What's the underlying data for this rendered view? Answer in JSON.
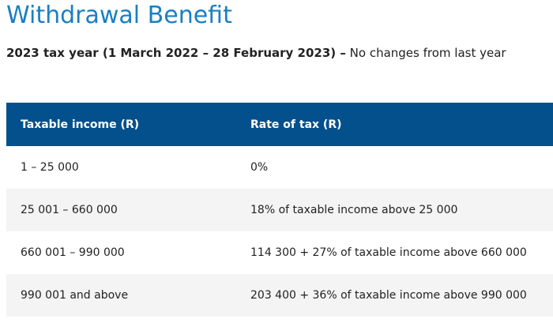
{
  "header": {
    "title": "Withdrawal Benefit",
    "subtitle_bold": "2023 tax year (1 March 2022 – 28 February 2023) –",
    "subtitle_rest": "No changes from last year"
  },
  "table": {
    "columns": [
      "Taxable income (R)",
      "Rate of tax (R)"
    ],
    "rows": [
      [
        "1 – 25 000",
        "0%"
      ],
      [
        "25 001 – 660 000",
        "18% of taxable income above 25 000"
      ],
      [
        "660 001 – 990 000",
        "114 300 + 27% of taxable income above 660 000"
      ],
      [
        "990 001 and above",
        "203 400 + 36% of taxable income above 990 000"
      ]
    ]
  }
}
